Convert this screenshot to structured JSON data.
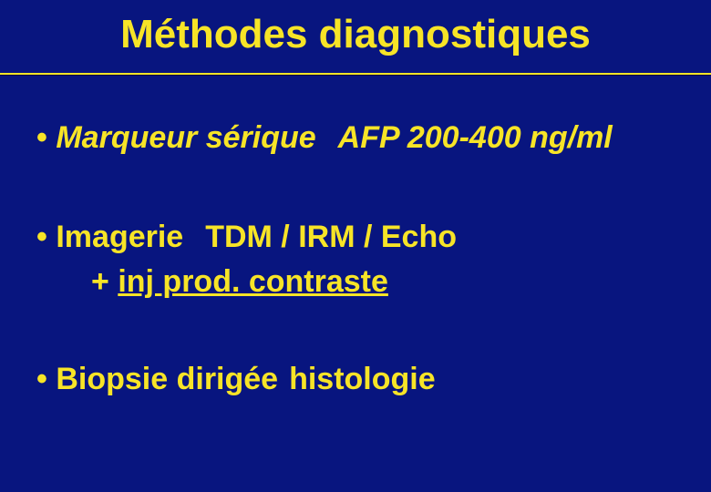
{
  "slide": {
    "background_color": "#08157f",
    "text_color": "#f7e427",
    "divider_color": "#f7e427",
    "title": {
      "text": "Méthodes diagnostiques",
      "fontsize": 44
    },
    "body_fontsize": 34,
    "bullets": [
      {
        "lead": "• ",
        "label": "Marqueur sérique",
        "label_italic": true,
        "detail": "AFP 200-400 ng/ml",
        "detail_italic": true
      },
      {
        "lead": "• ",
        "label": "Imagerie",
        "label_italic": false,
        "detail": "TDM / IRM / Echo",
        "detail_italic": false,
        "subline_prefix": "+ ",
        "subline_underlined": "inj prod. contraste"
      },
      {
        "lead": "• ",
        "label": "Biopsie dirigée",
        "arrow": "",
        "detail": "histologie"
      }
    ]
  }
}
